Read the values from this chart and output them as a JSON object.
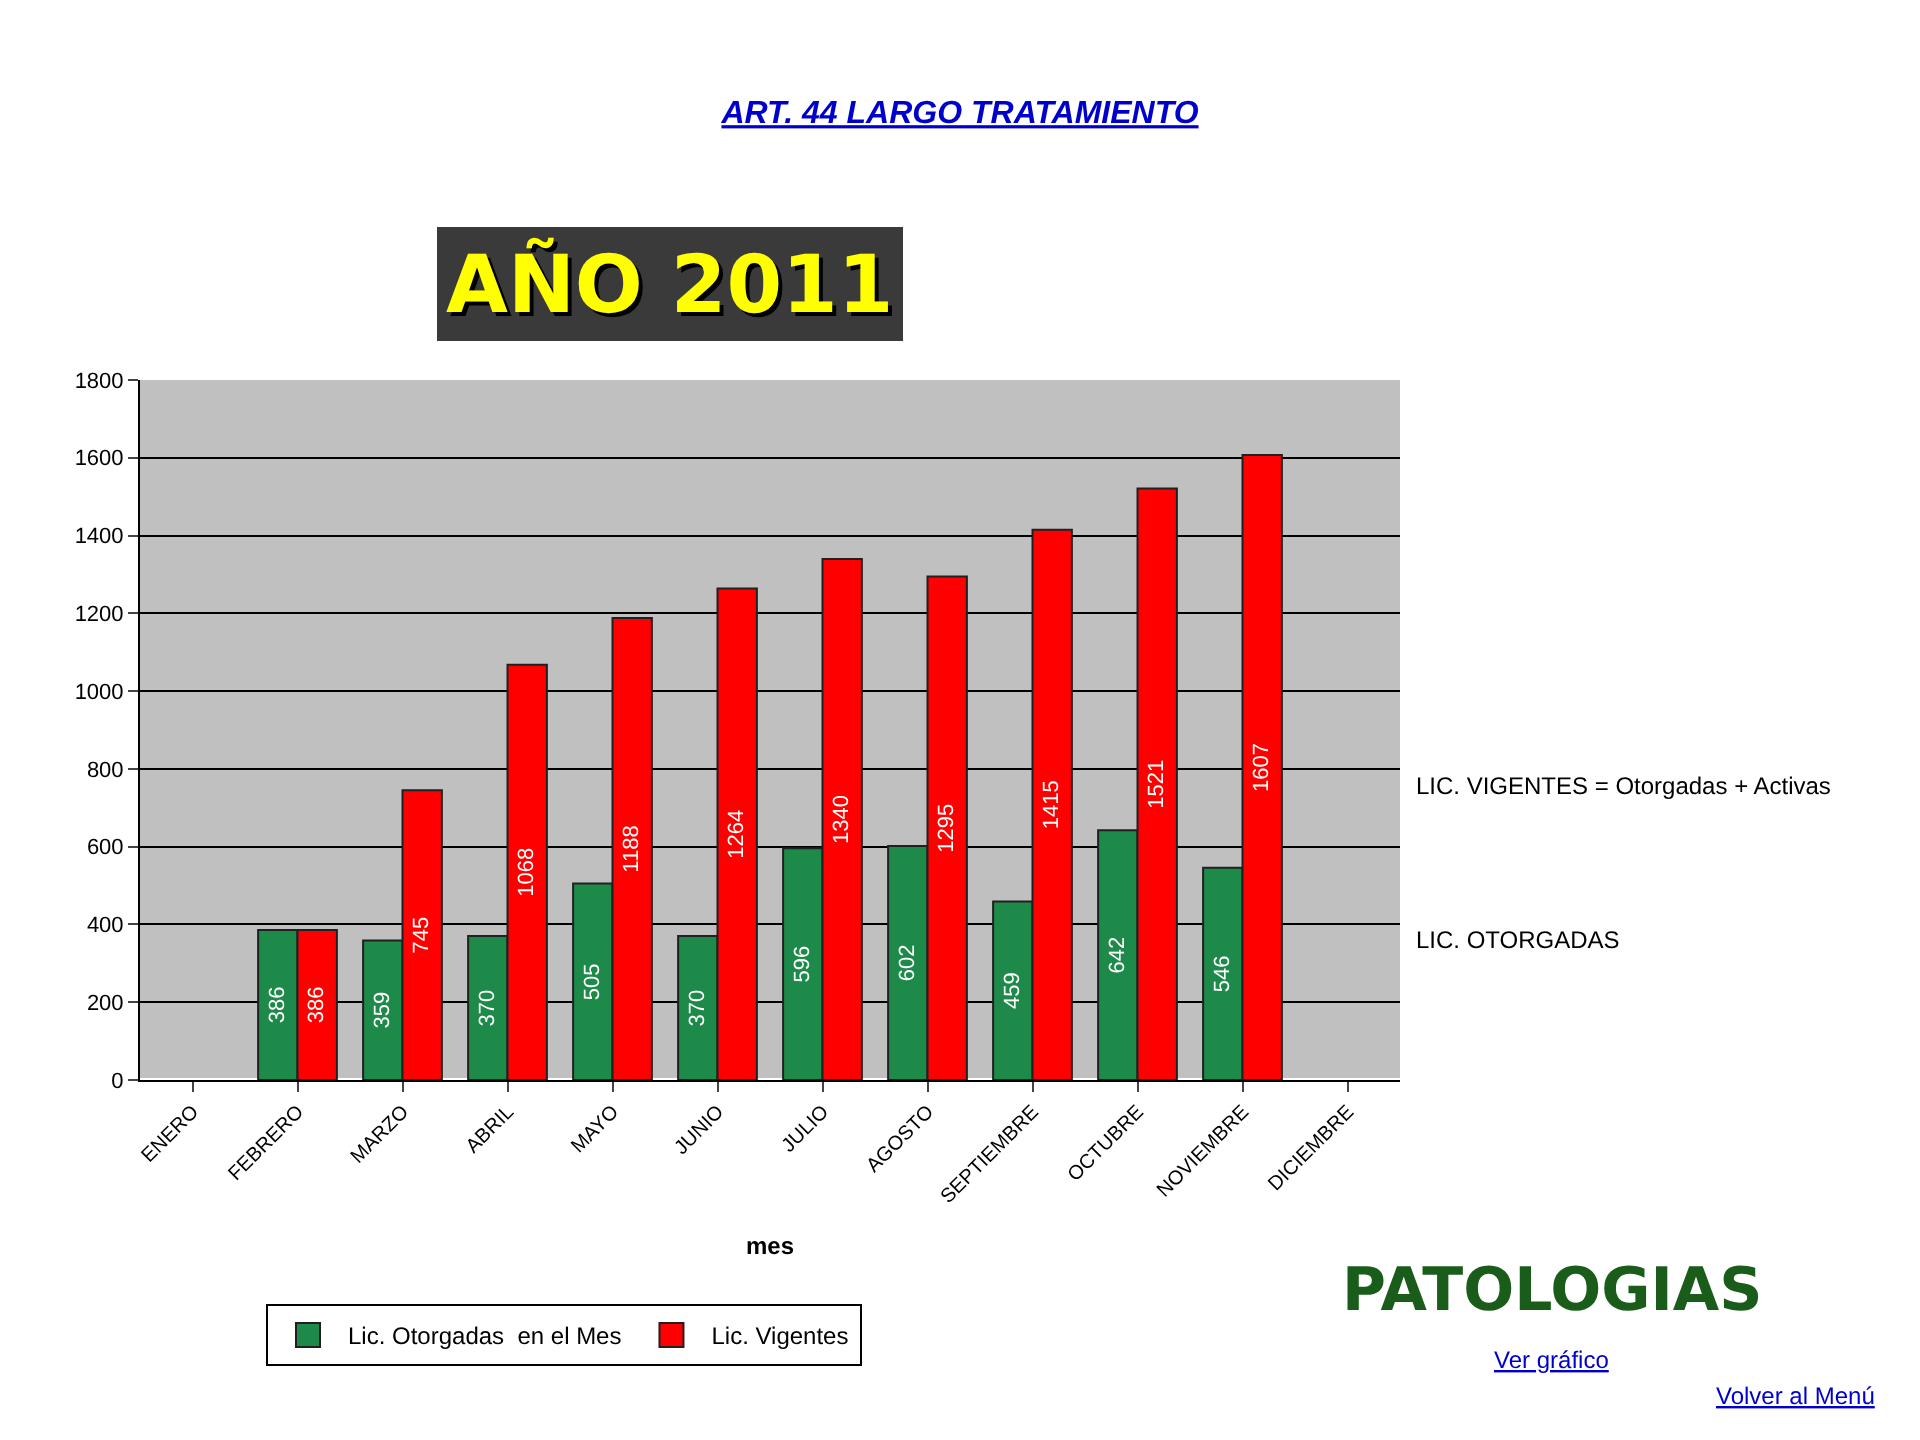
{
  "chart_data": {
    "type": "bar",
    "title": "ART. 44 LARGO TRATAMIENTO",
    "subtitle": "AÑO 2011",
    "xlabel": "mes",
    "categories": [
      "ENERO",
      "FEBRERO",
      "MARZO",
      "ABRIL",
      "MAYO",
      "JUNIO",
      "JULIO",
      "AGOSTO",
      "SEPTIEMBRE",
      "OCTUBRE",
      "NOVIEMBRE",
      "DICIEMBRE"
    ],
    "series": [
      {
        "name": "Lic. Otorgadas  en el Mes",
        "color": "#1e8a4a",
        "values": [
          null,
          386,
          359,
          370,
          505,
          370,
          596,
          602,
          459,
          642,
          546,
          null
        ]
      },
      {
        "name": "Lic. Vigentes",
        "color": "#ff0000",
        "values": [
          null,
          386,
          745,
          1068,
          1188,
          1264,
          1340,
          1295,
          1415,
          1521,
          1607,
          null
        ]
      }
    ],
    "ylim": [
      0,
      1800
    ],
    "yticks": [
      0,
      200,
      400,
      600,
      800,
      1000,
      1200,
      1400,
      1600,
      1800
    ],
    "grid": "y",
    "data_labels": true,
    "legend": "bottom",
    "annotations": [
      "LIC. VIGENTES = Otorgadas + Activas",
      "LIC. OTORGADAS",
      "PATOLOGIAS",
      "Ver gráfico",
      "Volver al Menú"
    ]
  }
}
